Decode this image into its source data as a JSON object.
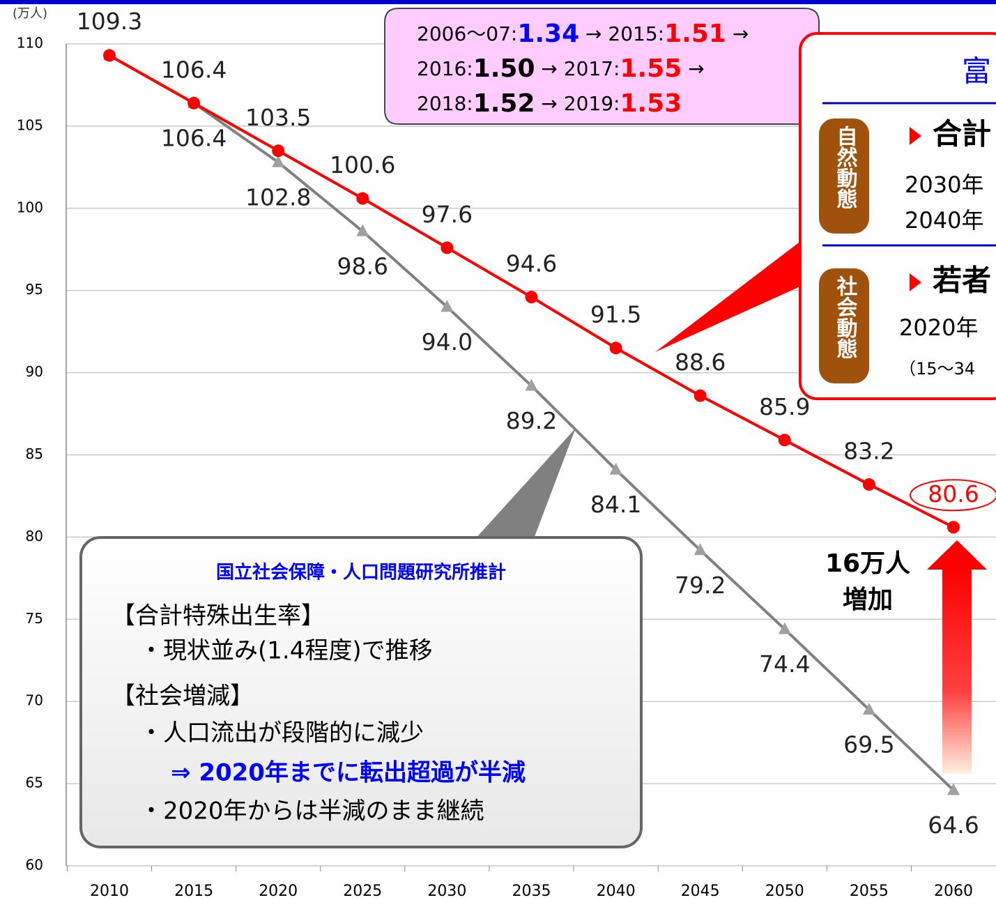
{
  "chart_data": {
    "type": "line",
    "y_unit_label": "(万人)",
    "categories": [
      2010,
      2015,
      2020,
      2025,
      2030,
      2035,
      2040,
      2045,
      2050,
      2055,
      2060
    ],
    "ylim": [
      60,
      110
    ],
    "yticks": [
      60,
      65,
      70,
      75,
      80,
      85,
      90,
      95,
      100,
      105,
      110
    ],
    "series": [
      {
        "color": "#ff0000",
        "marker": "circle",
        "values": [
          109.3,
          106.4,
          103.5,
          100.6,
          97.6,
          94.6,
          91.5,
          88.6,
          85.9,
          83.2,
          80.6
        ],
        "value_labels": [
          "109.3",
          "106.4",
          "103.5",
          "100.6",
          "97.6",
          "94.6",
          "91.5",
          "88.6",
          "85.9",
          "83.2",
          "80.6"
        ]
      },
      {
        "color": "#808080",
        "marker": "triangle",
        "values": [
          109.3,
          106.4,
          102.8,
          98.6,
          94.0,
          89.2,
          84.1,
          79.2,
          74.4,
          69.5,
          64.6
        ],
        "value_labels": [
          null,
          "106.4",
          "102.8",
          "98.6",
          "94.0",
          "89.2",
          "84.1",
          "79.2",
          "74.4",
          "69.5",
          "64.6"
        ]
      }
    ]
  },
  "pink_callout": {
    "lines": [
      [
        {
          "text": "2006〜07:",
          "color": "#000000"
        },
        {
          "text": "1.34",
          "color": "#0000ff"
        },
        {
          "text": " → 2015:",
          "color": "#000000"
        },
        {
          "text": "1.51",
          "color": "#ff0000"
        },
        {
          "text": " →",
          "color": "#000000"
        }
      ],
      [
        {
          "text": "2016:",
          "color": "#000000"
        },
        {
          "text": "1.50",
          "color": "#000000"
        },
        {
          "text": " → 2017:",
          "color": "#000000"
        },
        {
          "text": "1.55",
          "color": "#ff0000"
        },
        {
          "text": " →",
          "color": "#000000"
        }
      ],
      [
        {
          "text": "2018:",
          "color": "#000000"
        },
        {
          "text": "1.52",
          "color": "#000000"
        },
        {
          "text": " → 2019:",
          "color": "#000000"
        },
        {
          "text": "1.53",
          "color": "#ff0000"
        }
      ]
    ]
  },
  "right_box": {
    "title": "富",
    "sections": [
      {
        "tag": "自然動態",
        "heading": "合計",
        "lines": [
          "2030年",
          "2040年"
        ]
      },
      {
        "tag": "社会動態",
        "heading": "若者",
        "lines": [
          "2020年",
          "（15〜34"
        ]
      }
    ]
  },
  "gray_box": {
    "title": "国立社会保障・人口問題研究所推計",
    "lines": [
      "【合計特殊出生率】",
      "・現状並み(1.4程度)で推移",
      "【社会増減】",
      "・人口流出が段階的に減少",
      "⇒ 2020年までに転出超過が半減",
      "・2020年からは半減のまま継続"
    ]
  },
  "increase_label": [
    "16万人",
    "増加"
  ]
}
